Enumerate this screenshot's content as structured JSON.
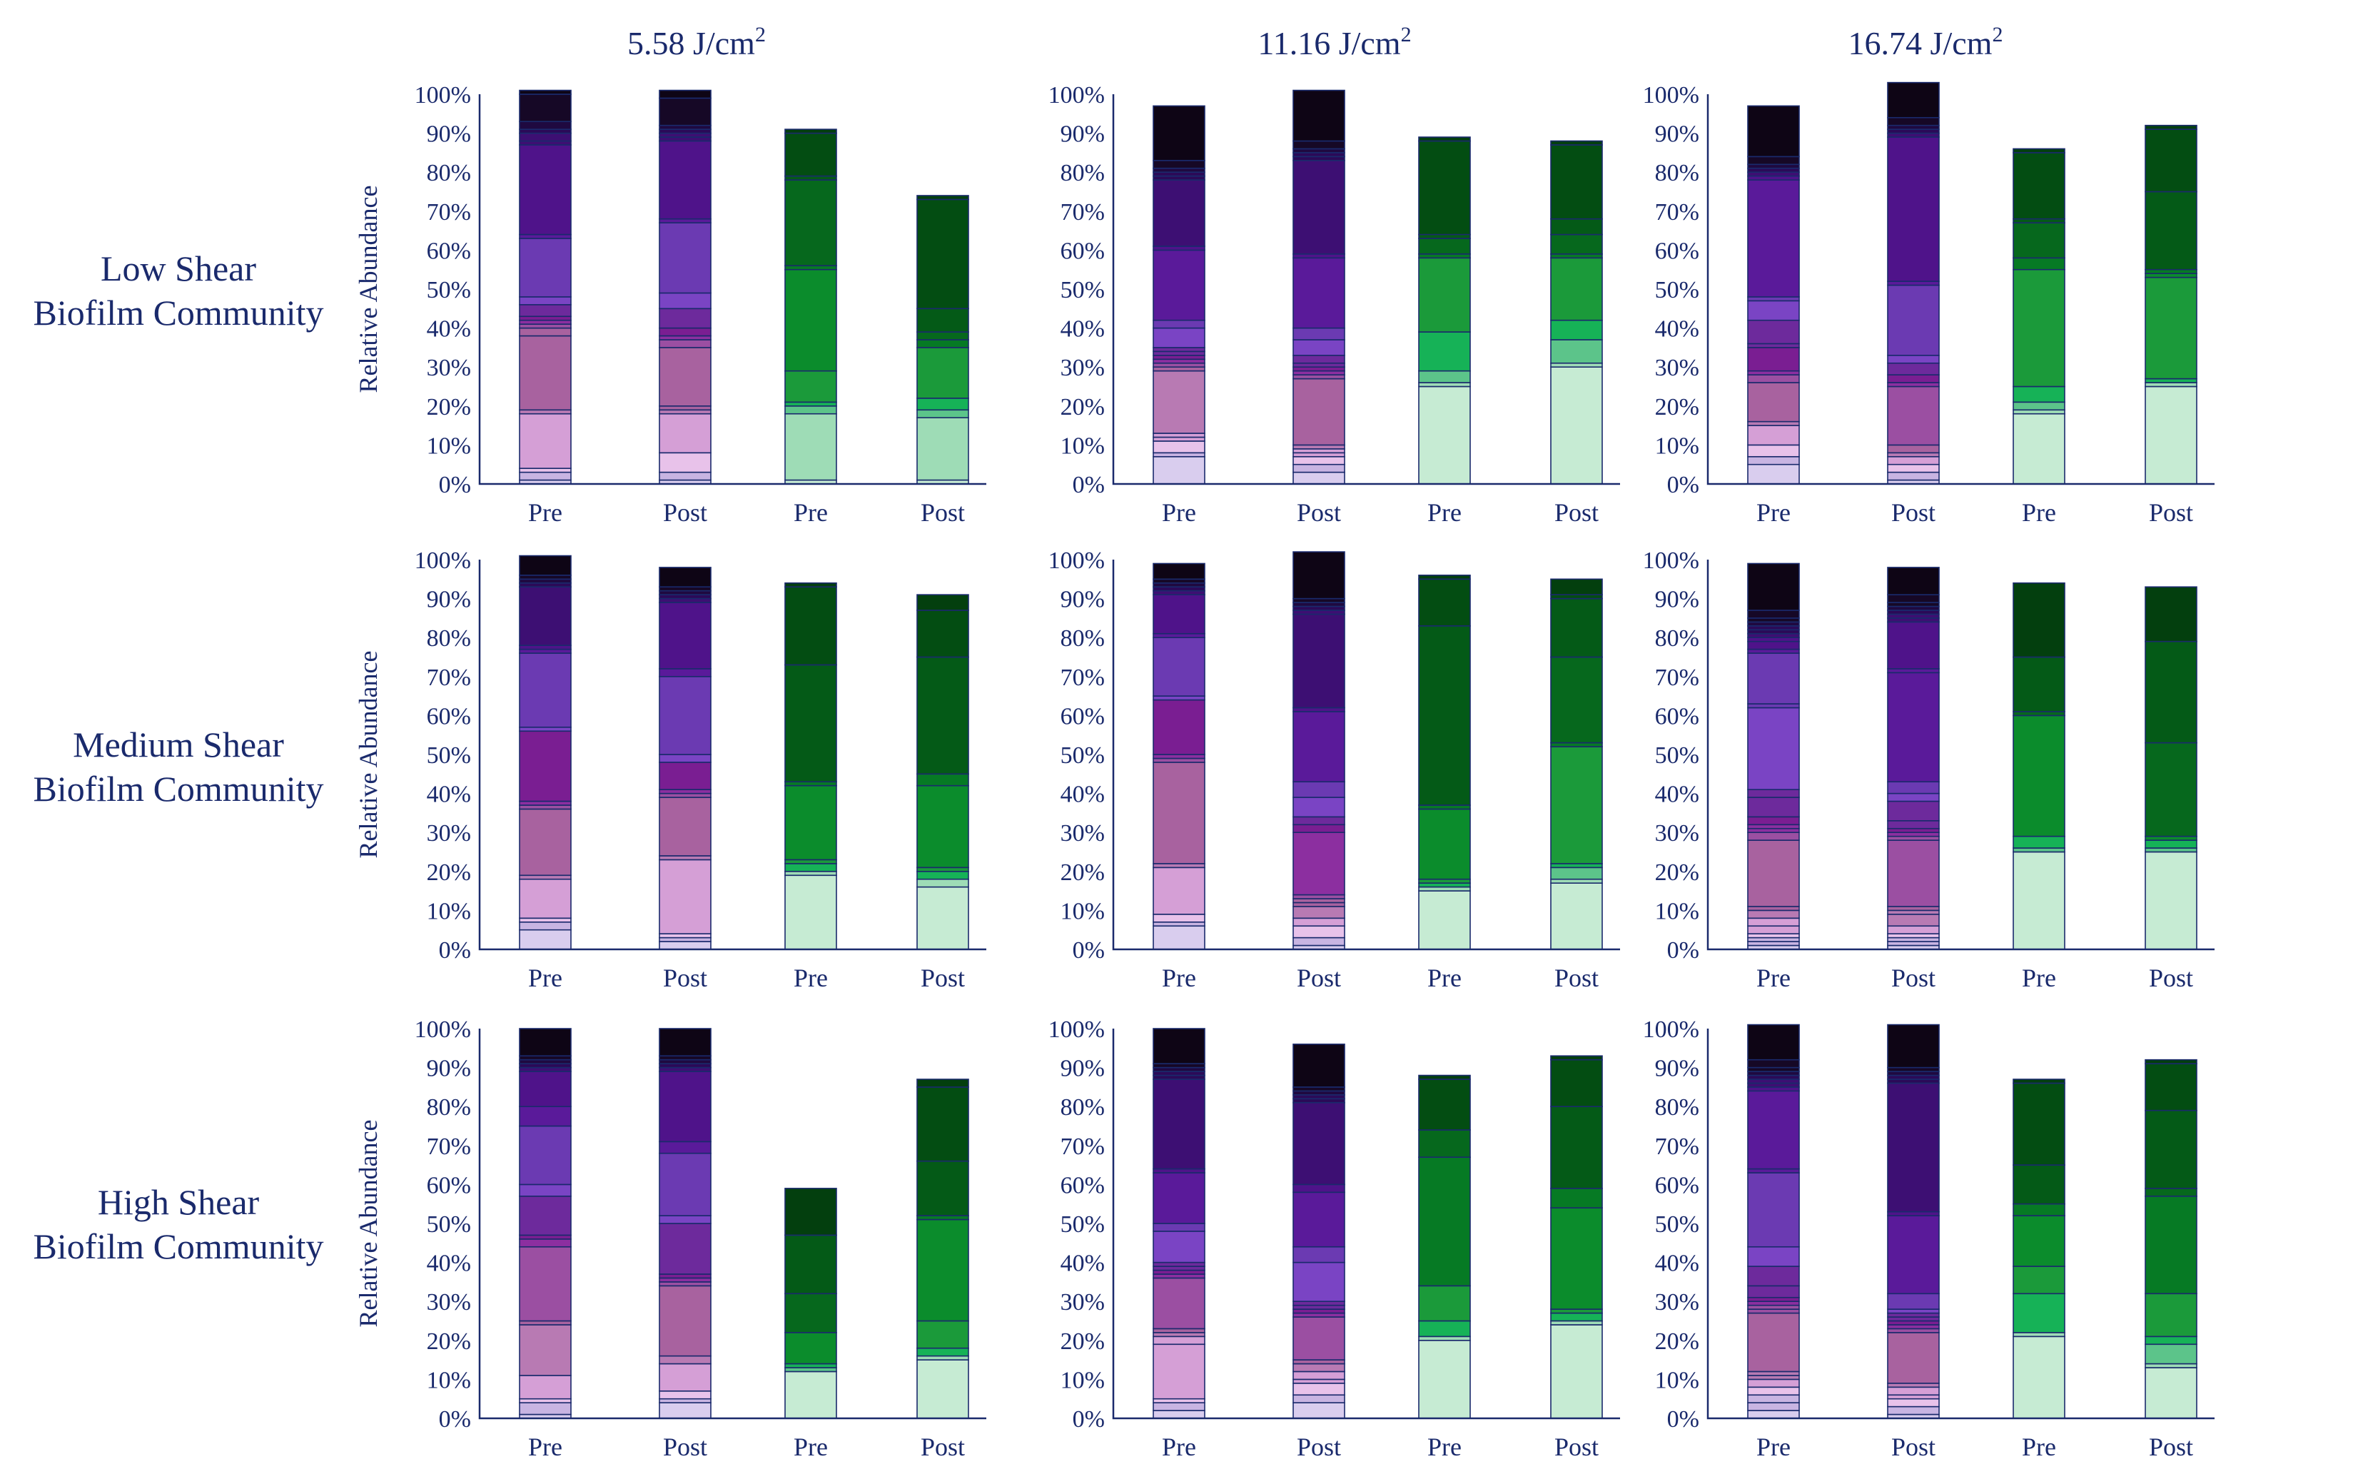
{
  "column_titles": [
    {
      "value": "5.58",
      "unit": "J/cm",
      "exp": "2"
    },
    {
      "value": "11.16",
      "unit": "J/cm",
      "exp": "2"
    },
    {
      "value": "16.74",
      "unit": "J/cm",
      "exp": "2"
    }
  ],
  "row_labels": [
    {
      "line1": "Low Shear",
      "line2": "Biofilm Community"
    },
    {
      "line1": "Medium Shear",
      "line2": "Biofilm Community"
    },
    {
      "line1": "High Shear",
      "line2": "Biofilm Community"
    }
  ],
  "y_label": "Relative Abundance",
  "y_ticks": [
    "0%",
    "10%",
    "20%",
    "30%",
    "40%",
    "50%",
    "60%",
    "70%",
    "80%",
    "90%",
    "100%"
  ],
  "x_labels": [
    "Pre",
    "Post",
    "Pre",
    "Post"
  ],
  "chart_data": [
    {
      "type": "stacked-bar",
      "row": "Low Shear",
      "dose": "5.58 J/cm2",
      "categories": [
        "Pre",
        "Post",
        "Pre",
        "Post"
      ],
      "ylim": [
        0,
        100
      ],
      "bars": [
        {
          "family": "purple",
          "segments": [
            1,
            2,
            1,
            14,
            1,
            19,
            2,
            1,
            1,
            1,
            3,
            2,
            15,
            1,
            23,
            1,
            2,
            1,
            2,
            7,
            1
          ]
        },
        {
          "family": "purple",
          "segments": [
            1,
            2,
            5,
            10,
            1,
            1,
            15,
            2,
            1,
            2,
            5,
            4,
            18,
            1,
            20,
            1,
            1,
            1,
            1,
            7,
            2
          ]
        },
        {
          "family": "green",
          "segments": [
            1,
            17,
            2,
            1,
            8,
            26,
            1,
            22,
            1,
            11,
            1
          ]
        },
        {
          "family": "green",
          "segments": [
            1,
            16,
            2,
            3,
            13,
            2,
            2,
            6,
            28,
            1
          ]
        }
      ]
    },
    {
      "type": "stacked-bar",
      "row": "Low Shear",
      "dose": "11.16 J/cm2",
      "categories": [
        "Pre",
        "Post",
        "Pre",
        "Post"
      ],
      "ylim": [
        0,
        100
      ],
      "bars": [
        {
          "family": "purple",
          "segments": [
            7,
            1,
            3,
            1,
            1,
            16,
            1,
            1,
            1,
            1,
            1,
            1,
            5,
            2,
            18,
            1,
            17,
            1,
            1,
            1,
            2,
            14
          ]
        },
        {
          "family": "purple",
          "segments": [
            3,
            2,
            2,
            1,
            1,
            1,
            17,
            1,
            1,
            1,
            1,
            2,
            4,
            3,
            18,
            1,
            24,
            1,
            1,
            1,
            2,
            13
          ]
        },
        {
          "family": "green",
          "segments": [
            25,
            1,
            3,
            10,
            19,
            1,
            4,
            1,
            24,
            1
          ]
        },
        {
          "family": "green",
          "segments": [
            30,
            1,
            6,
            5,
            16,
            1,
            5,
            4,
            19,
            1
          ]
        }
      ]
    },
    {
      "type": "stacked-bar",
      "row": "Low Shear",
      "dose": "16.74 J/cm2",
      "categories": [
        "Pre",
        "Post",
        "Pre",
        "Post"
      ],
      "ylim": [
        0,
        100
      ],
      "bars": [
        {
          "family": "purple",
          "segments": [
            5,
            2,
            3,
            5,
            1,
            10,
            2,
            1,
            6,
            1,
            6,
            5,
            1,
            30,
            1,
            1,
            1,
            1,
            2,
            13
          ]
        },
        {
          "family": "purple",
          "segments": [
            1,
            2,
            2,
            2,
            1,
            2,
            15,
            1,
            2,
            3,
            2,
            18,
            1,
            37,
            1,
            1,
            1,
            2,
            9
          ]
        },
        {
          "family": "green",
          "segments": [
            18,
            1,
            2,
            4,
            30,
            3,
            9,
            1,
            17,
            1
          ]
        },
        {
          "family": "green",
          "segments": [
            25,
            1,
            1,
            26,
            1,
            1,
            20,
            16,
            1
          ]
        }
      ]
    },
    {
      "type": "stacked-bar",
      "row": "Medium Shear",
      "dose": "5.58 J/cm2",
      "categories": [
        "Pre",
        "Post",
        "Pre",
        "Post"
      ],
      "ylim": [
        0,
        100
      ],
      "bars": [
        {
          "family": "purple",
          "segments": [
            5,
            2,
            1,
            10,
            1,
            17,
            1,
            1,
            18,
            1,
            19,
            1,
            1,
            15,
            1,
            1,
            1,
            5
          ]
        },
        {
          "family": "purple",
          "segments": [
            2,
            1,
            1,
            19,
            1,
            15,
            1,
            1,
            7,
            2,
            20,
            2,
            17,
            1,
            1,
            1,
            1,
            5
          ]
        },
        {
          "family": "green",
          "segments": [
            19,
            1,
            2,
            1,
            19,
            1,
            30,
            20,
            1
          ]
        },
        {
          "family": "green",
          "segments": [
            16,
            2,
            2,
            1,
            21,
            3,
            30,
            12,
            4
          ]
        }
      ]
    },
    {
      "type": "stacked-bar",
      "row": "Medium Shear",
      "dose": "11.16 J/cm2",
      "categories": [
        "Pre",
        "Post",
        "Pre",
        "Post"
      ],
      "ylim": [
        0,
        100
      ],
      "bars": [
        {
          "family": "purple",
          "segments": [
            6,
            1,
            2,
            12,
            1,
            26,
            1,
            1,
            14,
            1,
            15,
            1,
            10,
            1,
            1,
            1,
            1,
            4
          ]
        },
        {
          "family": "purple",
          "segments": [
            1,
            2,
            3,
            2,
            3,
            1,
            1,
            1,
            16,
            2,
            2,
            5,
            4,
            18,
            1,
            24,
            1,
            1,
            1,
            1,
            12
          ]
        },
        {
          "family": "green",
          "segments": [
            15,
            1,
            1,
            1,
            18,
            1,
            46,
            12,
            1
          ]
        },
        {
          "family": "green",
          "segments": [
            17,
            1,
            3,
            1,
            30,
            1,
            22,
            15,
            1,
            4
          ]
        }
      ]
    },
    {
      "type": "stacked-bar",
      "row": "Medium Shear",
      "dose": "16.74 J/cm2",
      "categories": [
        "Pre",
        "Post",
        "Pre",
        "Post"
      ],
      "ylim": [
        0,
        100
      ],
      "bars": [
        {
          "family": "purple",
          "segments": [
            1,
            1,
            1,
            1,
            2,
            2,
            2,
            1,
            17,
            2,
            1,
            1,
            2,
            5,
            2,
            21,
            1,
            13,
            1,
            2,
            1,
            1,
            1,
            1,
            1,
            1,
            2,
            12
          ]
        },
        {
          "family": "purple",
          "segments": [
            1,
            1,
            1,
            1,
            2,
            3,
            1,
            1,
            17,
            1,
            1,
            1,
            2,
            5,
            2,
            3,
            28,
            1,
            12,
            1,
            1,
            1,
            1,
            1,
            2,
            7
          ]
        },
        {
          "family": "green",
          "segments": [
            25,
            1,
            3,
            31,
            1,
            14,
            19
          ]
        },
        {
          "family": "green",
          "segments": [
            25,
            1,
            2,
            1,
            24,
            26,
            14
          ]
        }
      ]
    },
    {
      "type": "stacked-bar",
      "row": "High Shear",
      "dose": "5.58 J/cm2",
      "categories": [
        "Pre",
        "Post",
        "Pre",
        "Post"
      ],
      "ylim": [
        0,
        100
      ],
      "bars": [
        {
          "family": "purple",
          "segments": [
            1,
            3,
            1,
            6,
            13,
            1,
            19,
            2,
            1,
            10,
            3,
            15,
            5,
            9,
            1,
            1,
            1,
            1,
            7
          ]
        },
        {
          "family": "purple",
          "segments": [
            4,
            1,
            2,
            7,
            2,
            18,
            1,
            1,
            1,
            13,
            2,
            16,
            3,
            18,
            1,
            1,
            1,
            1,
            7
          ]
        },
        {
          "family": "green",
          "segments": [
            12,
            1,
            1,
            8,
            10,
            15,
            12
          ]
        },
        {
          "family": "green",
          "segments": [
            15,
            1,
            2,
            7,
            26,
            1,
            14,
            19,
            2
          ]
        }
      ]
    },
    {
      "type": "stacked-bar",
      "row": "High Shear",
      "dose": "11.16 J/cm2",
      "categories": [
        "Pre",
        "Post",
        "Pre",
        "Post"
      ],
      "ylim": [
        0,
        100
      ],
      "bars": [
        {
          "family": "purple",
          "segments": [
            2,
            2,
            1,
            14,
            2,
            1,
            1,
            13,
            1,
            1,
            1,
            1,
            8,
            2,
            13,
            1,
            23,
            1,
            1,
            1,
            1,
            9
          ]
        },
        {
          "family": "purple",
          "segments": [
            4,
            2,
            3,
            1,
            2,
            2,
            1,
            11,
            1,
            1,
            1,
            1,
            10,
            4,
            14,
            2,
            21,
            1,
            1,
            1,
            1,
            11
          ]
        },
        {
          "family": "green",
          "segments": [
            20,
            1,
            4,
            9,
            33,
            7,
            13,
            1
          ]
        },
        {
          "family": "green",
          "segments": [
            24,
            1,
            2,
            1,
            26,
            5,
            21,
            12,
            1
          ]
        }
      ]
    },
    {
      "type": "stacked-bar",
      "row": "High Shear",
      "dose": "16.74 J/cm2",
      "categories": [
        "Pre",
        "Post",
        "Pre",
        "Post"
      ],
      "ylim": [
        0,
        100
      ],
      "bars": [
        {
          "family": "purple",
          "segments": [
            2,
            2,
            2,
            2,
            2,
            1,
            1,
            15,
            1,
            1,
            1,
            1,
            3,
            5,
            5,
            19,
            1,
            20,
            1,
            1,
            1,
            1,
            1,
            1,
            2,
            9
          ]
        },
        {
          "family": "purple",
          "segments": [
            1,
            2,
            2,
            1,
            2,
            1,
            13,
            1,
            1,
            1,
            1,
            1,
            1,
            4,
            20,
            1,
            33,
            1,
            1,
            1,
            1,
            11
          ]
        },
        {
          "family": "green",
          "segments": [
            21,
            1,
            10,
            7,
            13,
            3,
            10,
            21,
            1
          ]
        },
        {
          "family": "green",
          "segments": [
            13,
            1,
            5,
            2,
            11,
            25,
            2,
            20,
            12,
            1
          ]
        }
      ]
    }
  ],
  "colors": {
    "axis": "#1a2a6c",
    "purple": [
      "#d9cdee",
      "#c8b4e2",
      "#e8c2ea",
      "#d59fd6",
      "#b87ab3",
      "#a8629f",
      "#9b4fa2",
      "#8c2fa0",
      "#7a1e92",
      "#6d2a9c",
      "#7a44c4",
      "#6b3ab2",
      "#5a1a9a",
      "#4f138a",
      "#3d0f73",
      "#2b0a58",
      "#1f0940",
      "#160826",
      "#0e0515"
    ],
    "green": [
      "#c6ebd3",
      "#9edcb6",
      "#5cc48a",
      "#16b257",
      "#1b9a3a",
      "#0b8c2c",
      "#067a24",
      "#06681d",
      "#045a17",
      "#034d12",
      "#033f0e"
    ]
  }
}
